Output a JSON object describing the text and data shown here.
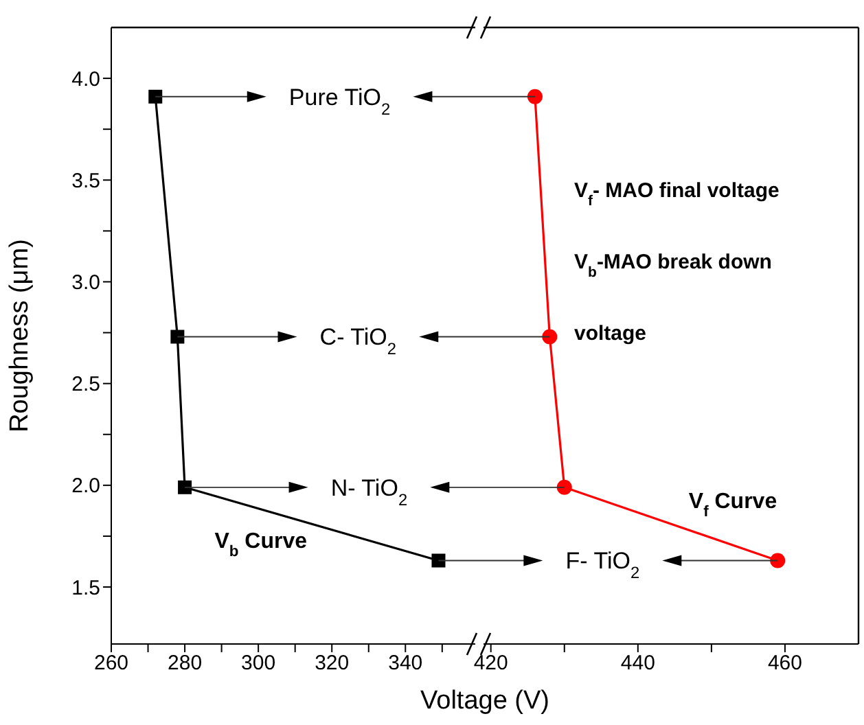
{
  "chart_data": [
    {
      "type": "line",
      "xlabel": "Voltage (V)",
      "ylabel": "Roughness (μm)",
      "xlim": [
        260,
        359
      ],
      "xticks": [
        260,
        {
          "value": 270,
          "label": null
        },
        280,
        {
          "value": 290,
          "label": null
        },
        300,
        {
          "value": 310,
          "label": null
        },
        320,
        {
          "value": 330,
          "label": null
        },
        340,
        {
          "value": 350,
          "label": null
        }
      ],
      "ylim": [
        1.22,
        4.25
      ],
      "yticks": [
        1.5,
        {
          "value": 1.75,
          "label": null
        },
        {
          "value": 2,
          "label": "2.0"
        },
        {
          "value": 2.25,
          "label": null
        },
        2.5,
        {
          "value": 2.75,
          "label": null
        },
        {
          "value": 3,
          "label": "3.0"
        },
        {
          "value": 3.25,
          "label": null
        },
        3.5,
        {
          "value": 3.75,
          "label": null
        },
        {
          "value": 4,
          "label": "4.0"
        }
      ],
      "marker": "square",
      "annotations": [
        "Pure TiO$_{2}$",
        "C- TiO$_{2}$",
        "N- TiO$_{2}$",
        "F- TiO$_{2}$"
      ],
      "series": [
        {
          "name": "V$_{b}$ Curve",
          "color": "#000000",
          "x": [
            272,
            278,
            280,
            349
          ],
          "values": [
            3.91,
            2.73,
            1.99,
            1.63
          ]
        }
      ]
    },
    {
      "type": "line",
      "xlim": [
        419,
        470
      ],
      "xticks": [
        420,
        {
          "value": 430,
          "label": null
        },
        440,
        {
          "value": 450,
          "label": null
        },
        460
      ],
      "ylim": [
        1.22,
        4.25
      ],
      "tick_labels": "x",
      "marker": "circle",
      "annotations": [
        "V$_{f}$- MAO final voltage",
        "V$_{b}$-MAO break down voltage"
      ],
      "series": [
        {
          "name": "V$_{f}$ Curve",
          "color": "#ff0000",
          "x": [
            426,
            428,
            430,
            459
          ],
          "values": [
            3.91,
            2.73,
            1.99,
            1.63
          ]
        }
      ]
    }
  ]
}
